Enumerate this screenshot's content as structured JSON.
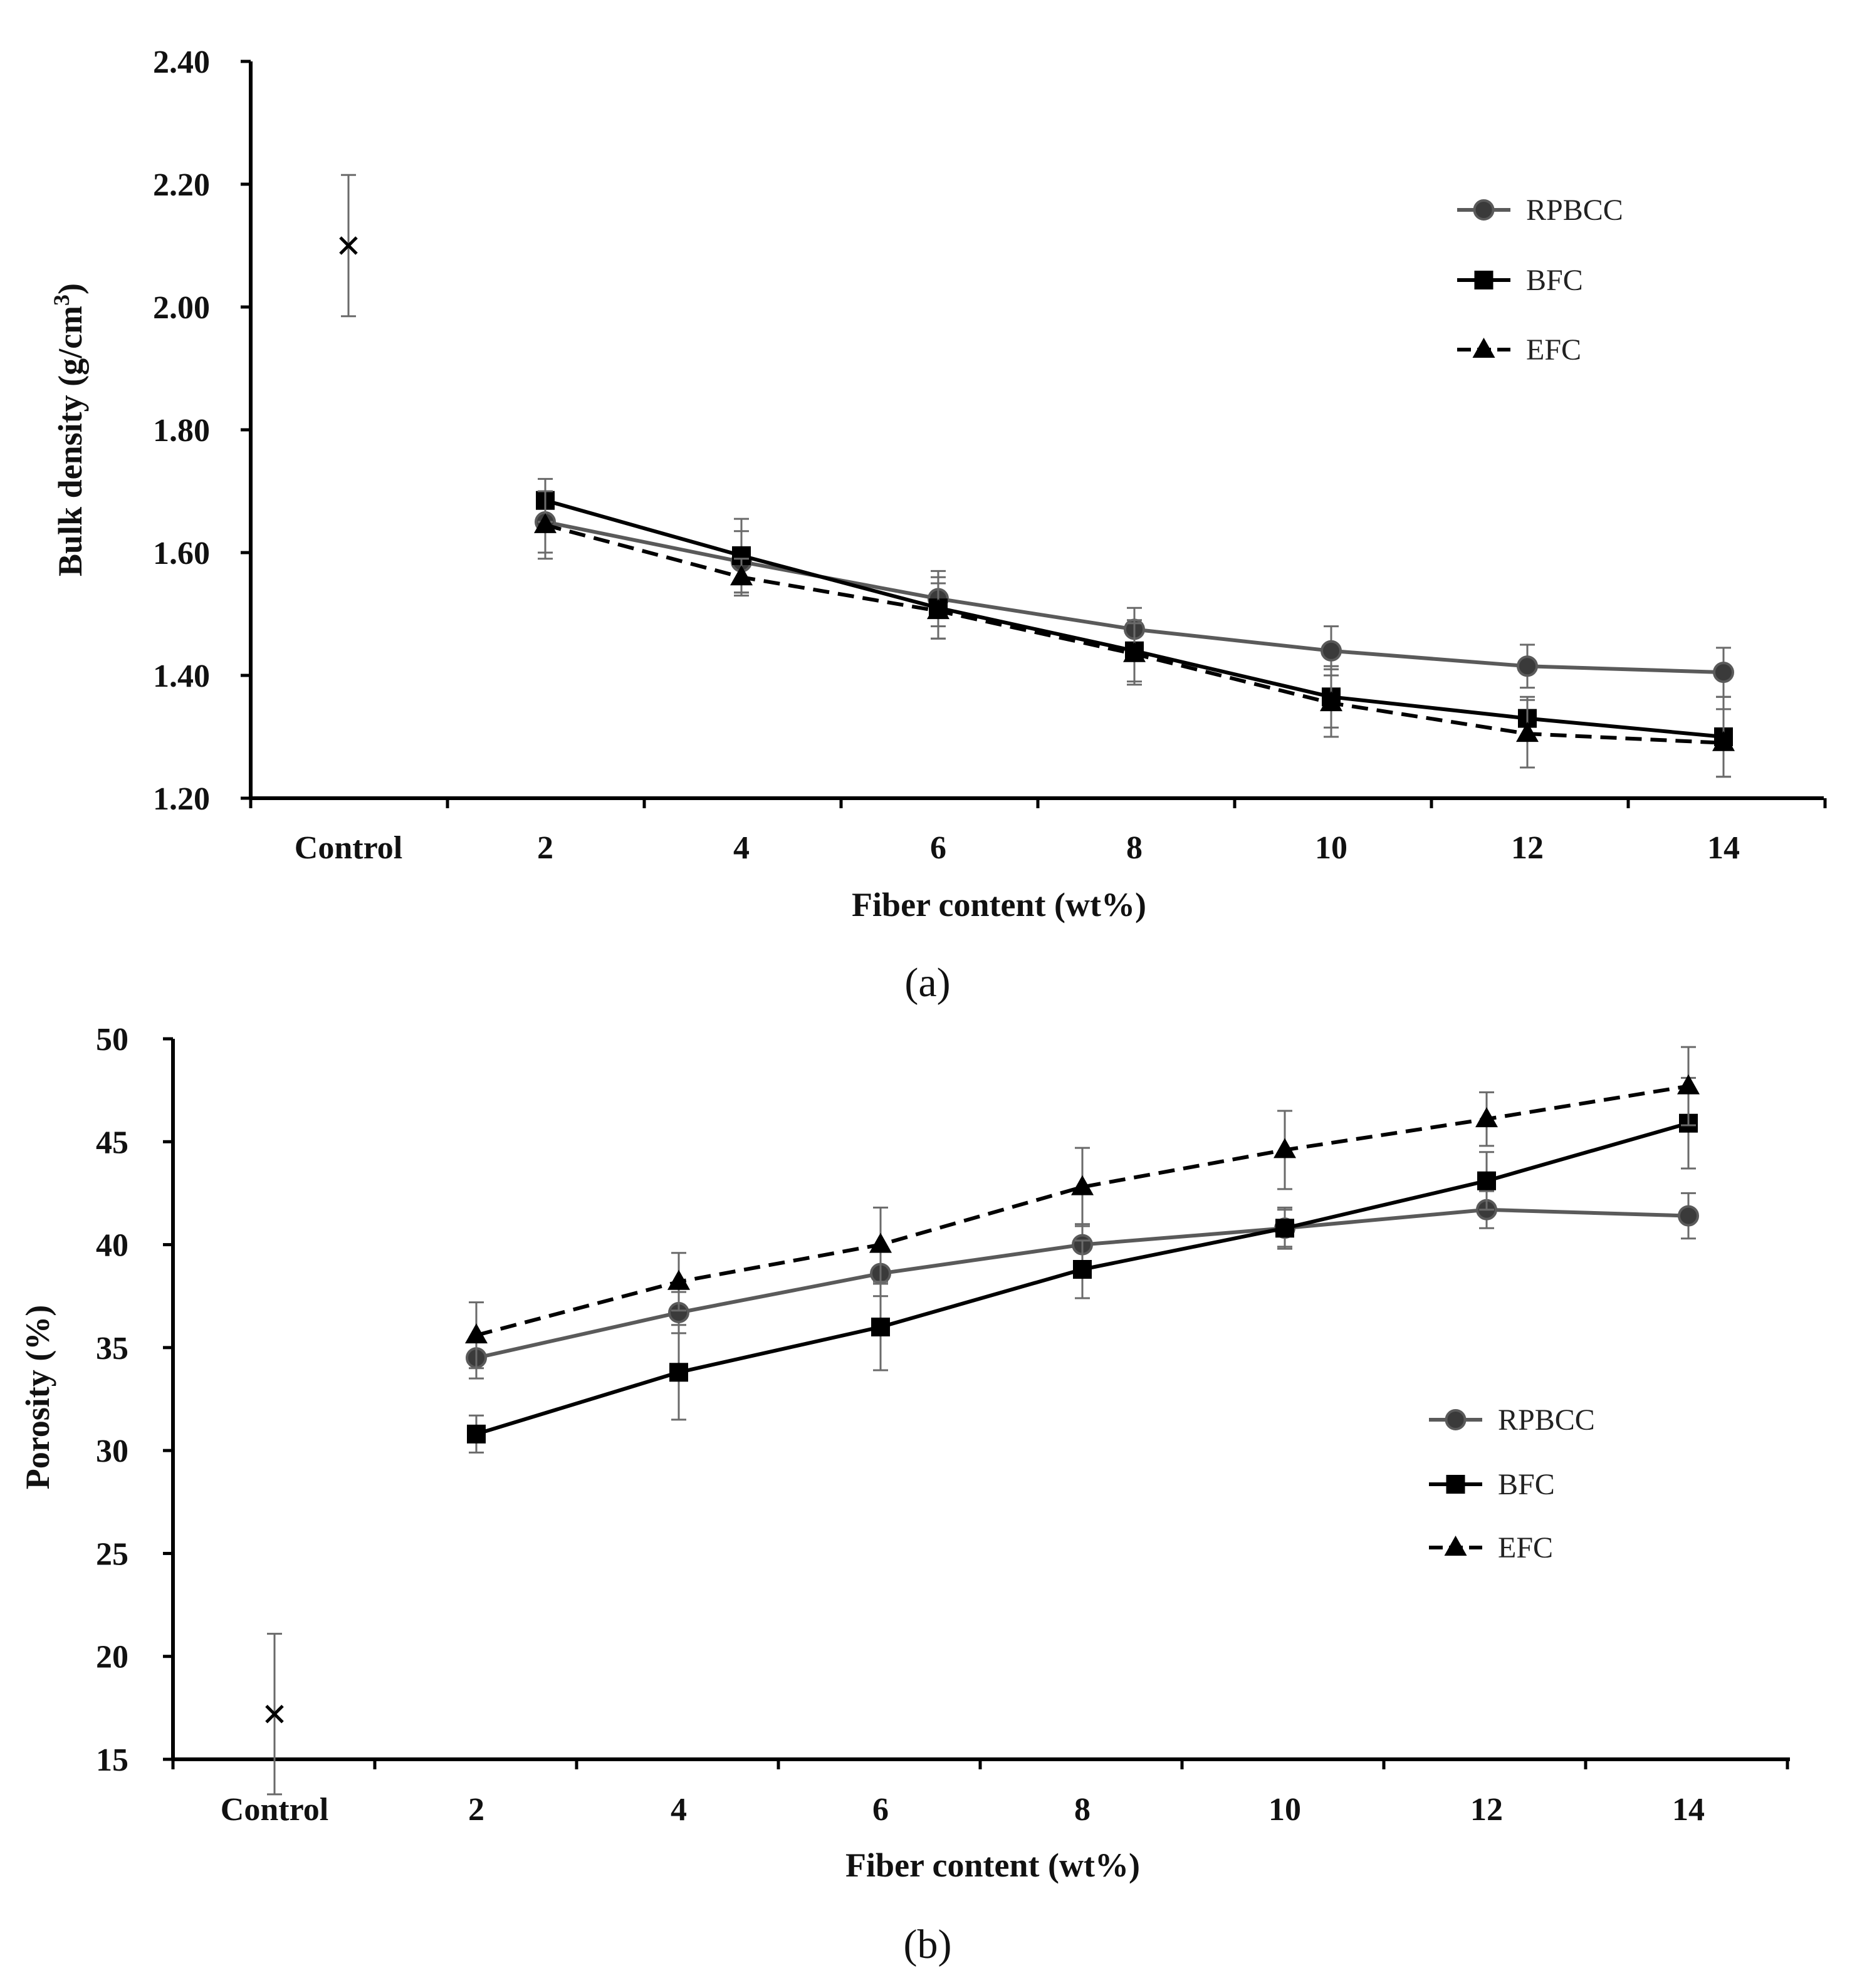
{
  "figure": {
    "panels": [
      {
        "label": "(a)"
      },
      {
        "label": "(b)"
      }
    ]
  },
  "colors": {
    "RPBCC": "#5a5a5a",
    "BFC": "#000000",
    "EFC": "#000000",
    "control": "#000000",
    "error_bar": "#6a6a6a",
    "axis": "#000000"
  },
  "chart_data": [
    {
      "type": "line",
      "panel": "(a)",
      "xlabel": "Fiber content (wt%)",
      "ylabel": "Bulk density (g/cm",
      "ylabel_sup": "3",
      "ylabel_end": ")",
      "categories": [
        "Control",
        "2",
        "4",
        "6",
        "8",
        "10",
        "12",
        "14"
      ],
      "ylim": [
        1.2,
        2.4
      ],
      "yticks": [
        "1.20",
        "1.40",
        "1.60",
        "1.80",
        "2.00",
        "2.20",
        "2.40"
      ],
      "legend_position": "upper-right",
      "control": {
        "value": 2.1,
        "error": 0.115
      },
      "series": [
        {
          "name": "RPBCC",
          "marker": "circle",
          "line": "solid",
          "values": [
            null,
            1.65,
            1.585,
            1.525,
            1.475,
            1.44,
            1.415,
            1.405
          ],
          "errors": [
            null,
            0.05,
            0.05,
            0.045,
            0.035,
            0.04,
            0.035,
            0.04
          ]
        },
        {
          "name": "BFC",
          "marker": "square",
          "line": "solid",
          "values": [
            null,
            1.685,
            1.595,
            1.51,
            1.44,
            1.365,
            1.33,
            1.3
          ],
          "errors": [
            null,
            0.035,
            0.06,
            0.05,
            0.05,
            0.05,
            0.035,
            0.065
          ]
        },
        {
          "name": "EFC",
          "marker": "triangle",
          "line": "dashed",
          "values": [
            null,
            1.645,
            1.56,
            1.505,
            1.435,
            1.355,
            1.305,
            1.29
          ],
          "errors": [
            null,
            0.055,
            0.03,
            0.045,
            0.05,
            0.055,
            0.055,
            0.055
          ]
        }
      ]
    },
    {
      "type": "line",
      "panel": "(b)",
      "xlabel": "Fiber content (wt%)",
      "ylabel": "Porosity (%)",
      "categories": [
        "Control",
        "2",
        "4",
        "6",
        "8",
        "10",
        "12",
        "14"
      ],
      "ylim": [
        15,
        50
      ],
      "yticks": [
        "15",
        "20",
        "25",
        "30",
        "35",
        "40",
        "45",
        "50"
      ],
      "legend_position": "middle-right",
      "control": {
        "value": 17.2,
        "error": 3.9
      },
      "series": [
        {
          "name": "RPBCC",
          "marker": "circle",
          "line": "solid",
          "values": [
            null,
            34.5,
            36.7,
            38.6,
            40.0,
            40.8,
            41.7,
            41.4
          ],
          "errors": [
            null,
            1.0,
            1.0,
            1.1,
            1.0,
            1.0,
            0.9,
            1.1
          ]
        },
        {
          "name": "BFC",
          "marker": "square",
          "line": "solid",
          "values": [
            null,
            30.8,
            33.8,
            36.0,
            38.8,
            40.8,
            43.1,
            45.9
          ],
          "errors": [
            null,
            0.9,
            2.3,
            2.1,
            1.4,
            0.9,
            1.4,
            2.2
          ]
        },
        {
          "name": "EFC",
          "marker": "triangle",
          "line": "dashed",
          "values": [
            null,
            35.6,
            38.2,
            40.0,
            42.8,
            44.6,
            46.1,
            47.7
          ],
          "errors": [
            null,
            1.6,
            1.4,
            1.8,
            1.9,
            1.9,
            1.3,
            1.9
          ]
        }
      ]
    }
  ]
}
